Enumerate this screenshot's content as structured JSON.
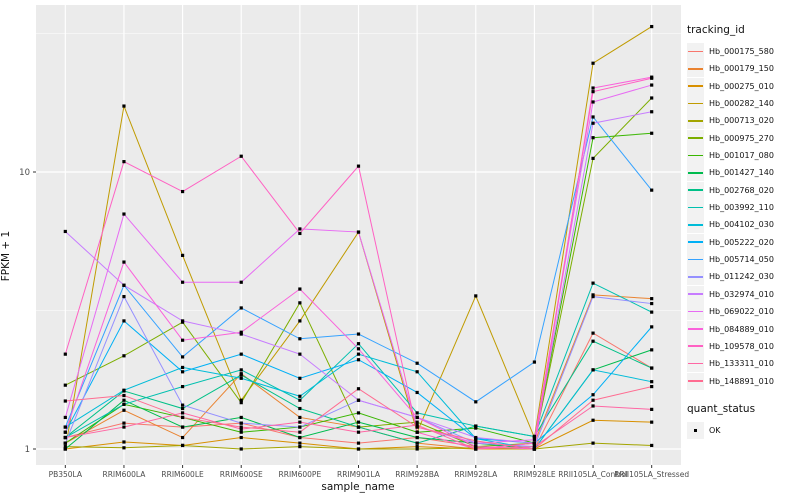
{
  "chart": {
    "legend_title": "tracking_id",
    "legend2_title": "quant_status",
    "legend2_items": [
      {
        "label": "OK",
        "shape": "black-square"
      }
    ]
  },
  "chart_data": {
    "type": "line",
    "title": "",
    "xlabel": "sample_name",
    "ylabel": "FPKM + 1",
    "y_scale": "log10",
    "y_ticks": [
      1,
      10
    ],
    "y_minor_ticks": [
      3.162,
      31.62
    ],
    "ylim_log10": [
      -0.06,
      1.6
    ],
    "grid": "on",
    "legend_position": "right",
    "panel_background": "#EBEBEB",
    "grid_color": "#FFFFFF",
    "point_shape": "square",
    "point_color": "#000000",
    "x_categories": [
      "PB350LA",
      "RRIM600LA",
      "RRIM600LE",
      "RRIM600SE",
      "RRIM600PE",
      "RRIM901LA",
      "RRIM928BA",
      "RRIM928LA",
      "RRIM928LE",
      "RRII105LA_Control",
      "RRII105LA_Stressed"
    ],
    "series": [
      {
        "name": "Hb_000175_580",
        "color": "#F8766D",
        "values": [
          1.1,
          1.24,
          1.2,
          1.24,
          1.1,
          1.05,
          1.1,
          1.02,
          1.0,
          2.62,
          1.96
        ]
      },
      {
        "name": "Hb_000179_150",
        "color": "#EA8331",
        "values": [
          1.05,
          1.38,
          1.1,
          1.87,
          1.3,
          1.2,
          1.05,
          1.0,
          1.05,
          3.6,
          3.49
        ]
      },
      {
        "name": "Hb_000275_010",
        "color": "#D89000",
        "values": [
          1.0,
          1.06,
          1.03,
          1.1,
          1.05,
          1.0,
          1.02,
          1.0,
          1.0,
          1.27,
          1.25
        ]
      },
      {
        "name": "Hb_000282_140",
        "color": "#C09B00",
        "values": [
          1.0,
          17.3,
          5.0,
          1.5,
          2.9,
          6.07,
          1.15,
          3.57,
          1.1,
          24.7,
          33.5
        ]
      },
      {
        "name": "Hb_000713_020",
        "color": "#A3A500",
        "values": [
          1.02,
          1.01,
          1.03,
          1.0,
          1.02,
          1.0,
          1.0,
          1.01,
          1.0,
          1.05,
          1.03
        ]
      },
      {
        "name": "Hb_000975_270",
        "color": "#7CAE00",
        "values": [
          1.7,
          2.17,
          2.87,
          1.47,
          3.37,
          1.2,
          1.25,
          1.02,
          1.05,
          11.2,
          18.5
        ]
      },
      {
        "name": "Hb_001017_080",
        "color": "#39B600",
        "values": [
          1.05,
          1.45,
          1.3,
          1.15,
          1.2,
          1.35,
          1.15,
          1.19,
          1.05,
          13.3,
          13.8
        ]
      },
      {
        "name": "Hb_001427_140",
        "color": "#00BB4E",
        "values": [
          1.0,
          1.5,
          1.2,
          1.3,
          1.1,
          1.25,
          1.1,
          1.05,
          1.0,
          1.93,
          2.28
        ]
      },
      {
        "name": "Hb_002768_020",
        "color": "#00C087",
        "values": [
          1.1,
          1.62,
          1.4,
          1.85,
          1.4,
          1.2,
          1.05,
          1.21,
          1.11,
          2.45,
          1.96
        ]
      },
      {
        "name": "Hb_003992_110",
        "color": "#00C0AF",
        "values": [
          1.1,
          1.45,
          1.68,
          1.93,
          1.5,
          2.4,
          1.35,
          1.21,
          1.11,
          3.97,
          3.12
        ]
      },
      {
        "name": "Hb_004102_030",
        "color": "#00BCD8",
        "values": [
          1.2,
          1.63,
          1.97,
          1.8,
          1.55,
          2.2,
          1.9,
          1.09,
          1.0,
          1.93,
          1.75
        ]
      },
      {
        "name": "Hb_005222_020",
        "color": "#00B0F6",
        "values": [
          1.15,
          2.9,
          1.9,
          2.2,
          1.8,
          2.1,
          1.6,
          1.09,
          1.05,
          1.57,
          2.76
        ]
      },
      {
        "name": "Hb_005714_050",
        "color": "#35A2FF",
        "values": [
          1.2,
          3.9,
          2.15,
          3.23,
          2.5,
          2.6,
          2.04,
          1.48,
          2.06,
          15.8,
          8.6
        ]
      },
      {
        "name": "Hb_011242_030",
        "color": "#9590FF",
        "values": [
          1.05,
          3.55,
          1.44,
          1.24,
          1.2,
          1.5,
          1.3,
          1.05,
          1.02,
          3.55,
          3.35
        ]
      },
      {
        "name": "Hb_032974_010",
        "color": "#C77CFF",
        "values": [
          6.1,
          3.9,
          2.9,
          2.6,
          2.2,
          1.5,
          1.3,
          1.1,
          1.05,
          15.0,
          16.5
        ]
      },
      {
        "name": "Hb_069022_010",
        "color": "#E76BF3",
        "values": [
          1.3,
          7.05,
          4.0,
          4.0,
          6.23,
          6.07,
          1.2,
          1.05,
          1.08,
          17.9,
          20.6
        ]
      },
      {
        "name": "Hb_084889_010",
        "color": "#FA62DB",
        "values": [
          1.15,
          4.73,
          2.47,
          2.64,
          3.78,
          2.3,
          1.3,
          1.02,
          1.0,
          20.1,
          22.0
        ]
      },
      {
        "name": "Hb_109578_010",
        "color": "#FF61C3",
        "values": [
          2.2,
          10.9,
          8.5,
          11.4,
          6.0,
          10.5,
          1.15,
          1.0,
          1.05,
          19.5,
          21.8
        ]
      },
      {
        "name": "Hb_133311_010",
        "color": "#FF67A4",
        "values": [
          1.1,
          1.2,
          1.35,
          1.18,
          1.25,
          1.15,
          1.22,
          1.0,
          1.02,
          1.43,
          1.39
        ]
      },
      {
        "name": "Hb_148891_010",
        "color": "#FF6C91",
        "values": [
          1.49,
          1.56,
          1.3,
          1.2,
          1.15,
          1.65,
          1.2,
          1.07,
          1.0,
          1.5,
          1.68
        ]
      }
    ]
  }
}
